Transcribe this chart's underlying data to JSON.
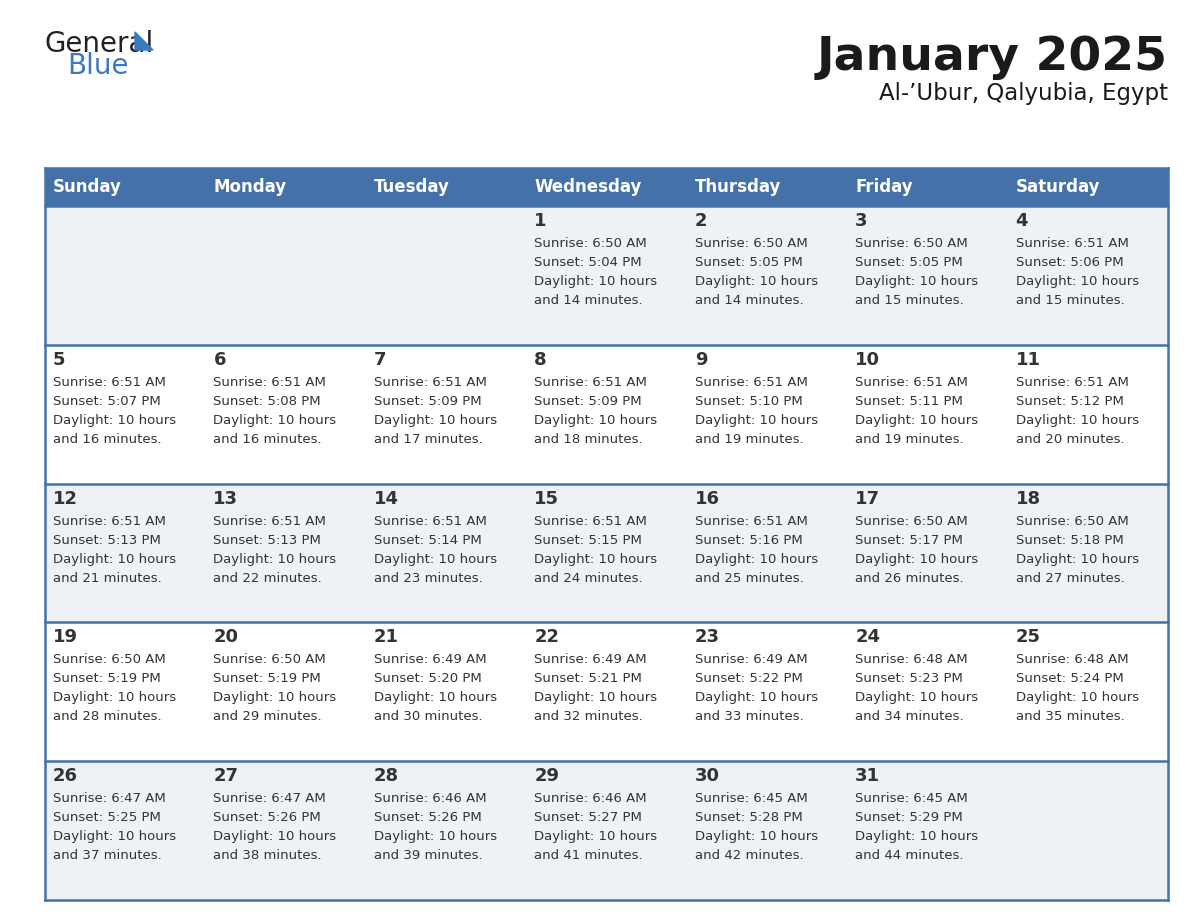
{
  "title": "January 2025",
  "subtitle": "Al-’Ubur, Qalyubia, Egypt",
  "days_of_week": [
    "Sunday",
    "Monday",
    "Tuesday",
    "Wednesday",
    "Thursday",
    "Friday",
    "Saturday"
  ],
  "header_bg": "#4472a8",
  "header_text": "#ffffff",
  "cell_bg_odd": "#eef2f7",
  "cell_bg_even": "#ffffff",
  "border_color": "#4472a8",
  "text_color": "#333333",
  "title_color": "#1a1a1a",
  "calendar_data": [
    [
      {
        "day": null,
        "sunrise": null,
        "sunset": null,
        "daylight": null
      },
      {
        "day": null,
        "sunrise": null,
        "sunset": null,
        "daylight": null
      },
      {
        "day": null,
        "sunrise": null,
        "sunset": null,
        "daylight": null
      },
      {
        "day": 1,
        "sunrise": "6:50 AM",
        "sunset": "5:04 PM",
        "daylight": "10 hours and 14 minutes."
      },
      {
        "day": 2,
        "sunrise": "6:50 AM",
        "sunset": "5:05 PM",
        "daylight": "10 hours and 14 minutes."
      },
      {
        "day": 3,
        "sunrise": "6:50 AM",
        "sunset": "5:05 PM",
        "daylight": "10 hours and 15 minutes."
      },
      {
        "day": 4,
        "sunrise": "6:51 AM",
        "sunset": "5:06 PM",
        "daylight": "10 hours and 15 minutes."
      }
    ],
    [
      {
        "day": 5,
        "sunrise": "6:51 AM",
        "sunset": "5:07 PM",
        "daylight": "10 hours and 16 minutes."
      },
      {
        "day": 6,
        "sunrise": "6:51 AM",
        "sunset": "5:08 PM",
        "daylight": "10 hours and 16 minutes."
      },
      {
        "day": 7,
        "sunrise": "6:51 AM",
        "sunset": "5:09 PM",
        "daylight": "10 hours and 17 minutes."
      },
      {
        "day": 8,
        "sunrise": "6:51 AM",
        "sunset": "5:09 PM",
        "daylight": "10 hours and 18 minutes."
      },
      {
        "day": 9,
        "sunrise": "6:51 AM",
        "sunset": "5:10 PM",
        "daylight": "10 hours and 19 minutes."
      },
      {
        "day": 10,
        "sunrise": "6:51 AM",
        "sunset": "5:11 PM",
        "daylight": "10 hours and 19 minutes."
      },
      {
        "day": 11,
        "sunrise": "6:51 AM",
        "sunset": "5:12 PM",
        "daylight": "10 hours and 20 minutes."
      }
    ],
    [
      {
        "day": 12,
        "sunrise": "6:51 AM",
        "sunset": "5:13 PM",
        "daylight": "10 hours and 21 minutes."
      },
      {
        "day": 13,
        "sunrise": "6:51 AM",
        "sunset": "5:13 PM",
        "daylight": "10 hours and 22 minutes."
      },
      {
        "day": 14,
        "sunrise": "6:51 AM",
        "sunset": "5:14 PM",
        "daylight": "10 hours and 23 minutes."
      },
      {
        "day": 15,
        "sunrise": "6:51 AM",
        "sunset": "5:15 PM",
        "daylight": "10 hours and 24 minutes."
      },
      {
        "day": 16,
        "sunrise": "6:51 AM",
        "sunset": "5:16 PM",
        "daylight": "10 hours and 25 minutes."
      },
      {
        "day": 17,
        "sunrise": "6:50 AM",
        "sunset": "5:17 PM",
        "daylight": "10 hours and 26 minutes."
      },
      {
        "day": 18,
        "sunrise": "6:50 AM",
        "sunset": "5:18 PM",
        "daylight": "10 hours and 27 minutes."
      }
    ],
    [
      {
        "day": 19,
        "sunrise": "6:50 AM",
        "sunset": "5:19 PM",
        "daylight": "10 hours and 28 minutes."
      },
      {
        "day": 20,
        "sunrise": "6:50 AM",
        "sunset": "5:19 PM",
        "daylight": "10 hours and 29 minutes."
      },
      {
        "day": 21,
        "sunrise": "6:49 AM",
        "sunset": "5:20 PM",
        "daylight": "10 hours and 30 minutes."
      },
      {
        "day": 22,
        "sunrise": "6:49 AM",
        "sunset": "5:21 PM",
        "daylight": "10 hours and 32 minutes."
      },
      {
        "day": 23,
        "sunrise": "6:49 AM",
        "sunset": "5:22 PM",
        "daylight": "10 hours and 33 minutes."
      },
      {
        "day": 24,
        "sunrise": "6:48 AM",
        "sunset": "5:23 PM",
        "daylight": "10 hours and 34 minutes."
      },
      {
        "day": 25,
        "sunrise": "6:48 AM",
        "sunset": "5:24 PM",
        "daylight": "10 hours and 35 minutes."
      }
    ],
    [
      {
        "day": 26,
        "sunrise": "6:47 AM",
        "sunset": "5:25 PM",
        "daylight": "10 hours and 37 minutes."
      },
      {
        "day": 27,
        "sunrise": "6:47 AM",
        "sunset": "5:26 PM",
        "daylight": "10 hours and 38 minutes."
      },
      {
        "day": 28,
        "sunrise": "6:46 AM",
        "sunset": "5:26 PM",
        "daylight": "10 hours and 39 minutes."
      },
      {
        "day": 29,
        "sunrise": "6:46 AM",
        "sunset": "5:27 PM",
        "daylight": "10 hours and 41 minutes."
      },
      {
        "day": 30,
        "sunrise": "6:45 AM",
        "sunset": "5:28 PM",
        "daylight": "10 hours and 42 minutes."
      },
      {
        "day": 31,
        "sunrise": "6:45 AM",
        "sunset": "5:29 PM",
        "daylight": "10 hours and 44 minutes."
      },
      {
        "day": null,
        "sunrise": null,
        "sunset": null,
        "daylight": null
      }
    ]
  ]
}
